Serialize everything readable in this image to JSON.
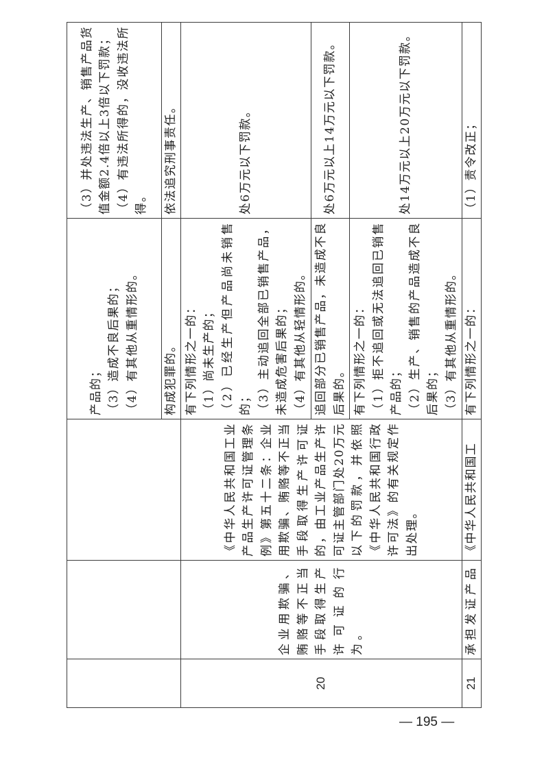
{
  "table": {
    "row19": {
      "sub": [
        {
          "circumstance": [
            "产品的；",
            "（3）造成不良后果的；",
            "（4）有其他从重情形的。"
          ],
          "penalty": [
            "（3）并处违法生产、销售产品货值金额2.4倍以上3倍以下罚款；",
            "（4）有违法所得的，没收违法所得。"
          ]
        },
        {
          "circumstance": [
            "构成犯罪的。"
          ],
          "penalty": [
            "依法追究刑事责任。"
          ]
        }
      ]
    },
    "row20": {
      "number": "20",
      "violation": "企业用欺骗、贿赂等不正当手段取得生产许可证的行为。",
      "basis": "《中华人民共和国工业产品生产许可证管理条例》第五十二条：企业用欺骗、贿赂等不正当手段取得生产许可证的，由工业产品生产许可证主管部门处20万元以下的罚款，并依照《中华人民共和国行政许可法》的有关规定作出处理。",
      "sub": [
        {
          "circumstance": [
            "有下列情形之一的：",
            "（1）尚未生产的；",
            "（2）已经生产但产品尚未销售的；",
            "（3）主动追回全部已销售产品，未造成危害后果的；",
            "（4）有其他从轻情形的。"
          ],
          "penalty": [
            "处6万元以下罚款。"
          ]
        },
        {
          "circumstance": [
            "追回部分已销售产品，未造成不良后果的。"
          ],
          "penalty": [
            "处6万元以上14万元以下罚款。"
          ]
        },
        {
          "circumstance": [
            "有下列情形之一的：",
            "（1）拒不追回或无法追回已销售产品的；",
            "（2）生产、销售的产品造成不良后果的；",
            "（3）有其他从重情形的。"
          ],
          "penalty": [
            "处14万元以上20万元以下罚款。"
          ]
        }
      ]
    },
    "row21": {
      "number": "21",
      "violation": "承担发证产品",
      "basis": "《中华人民共和国工",
      "circumstance": "有下列情形之一的：",
      "penalty": "（1）责令改正；"
    }
  },
  "page_number": "— 195 —"
}
